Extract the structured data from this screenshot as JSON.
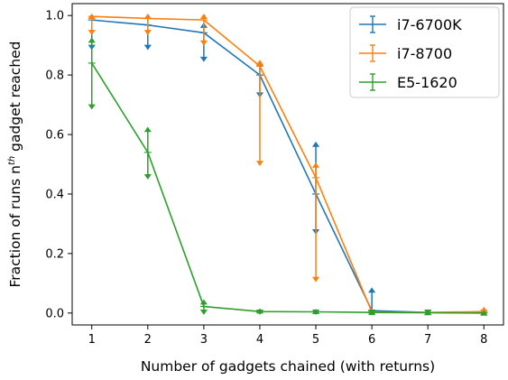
{
  "chart_data": {
    "type": "line",
    "xlabel": "Number of gadgets chained (with returns)",
    "ylabel_main": "Fraction of runs n",
    "ylabel_sup": "th",
    "ylabel_tail": " gadget reached",
    "x": [
      1,
      2,
      3,
      4,
      5,
      6,
      7,
      8
    ],
    "xlim": [
      0.65,
      8.35
    ],
    "ylim": [
      -0.04,
      1.04
    ],
    "xticks": [
      1,
      2,
      3,
      4,
      5,
      6,
      7,
      8
    ],
    "xtick_labels": [
      "1",
      "2",
      "3",
      "4",
      "5",
      "6",
      "7",
      "8"
    ],
    "yticks": [
      0.0,
      0.2,
      0.4,
      0.6,
      0.8,
      1.0
    ],
    "ytick_labels": [
      "0.0",
      "0.2",
      "0.4",
      "0.6",
      "0.8",
      "1.0"
    ],
    "grid": false,
    "legend_position": "top-right",
    "series": [
      {
        "name": "i7-6700K",
        "color": "#1f77b4",
        "values": [
          0.985,
          0.968,
          0.942,
          0.8,
          0.4,
          0.008,
          0.002,
          0.0
        ],
        "err_low": [
          0.89,
          0.89,
          0.85,
          0.73,
          0.27,
          0.0,
          0.0,
          0.0
        ],
        "err_high": [
          1.0,
          1.0,
          0.97,
          0.84,
          0.57,
          0.08,
          0.005,
          0.003
        ]
      },
      {
        "name": "i7-8700",
        "color": "#ff7f0e",
        "values": [
          0.997,
          0.99,
          0.985,
          0.83,
          0.455,
          0.003,
          0.002,
          0.005
        ],
        "err_low": [
          0.94,
          0.94,
          0.905,
          0.5,
          0.11,
          0.0,
          0.0,
          0.0
        ],
        "err_high": [
          1.0,
          1.0,
          1.0,
          0.845,
          0.5,
          0.01,
          0.005,
          0.015
        ]
      },
      {
        "name": "E5-1620",
        "color": "#2ca02c",
        "values": [
          0.84,
          0.54,
          0.022,
          0.005,
          0.004,
          0.002,
          0.001,
          0.0
        ],
        "err_low": [
          0.69,
          0.455,
          0.0,
          0.0,
          0.0,
          0.0,
          0.0,
          0.0
        ],
        "err_high": [
          0.92,
          0.62,
          0.04,
          0.01,
          0.008,
          0.005,
          0.004,
          0.003
        ]
      }
    ]
  }
}
